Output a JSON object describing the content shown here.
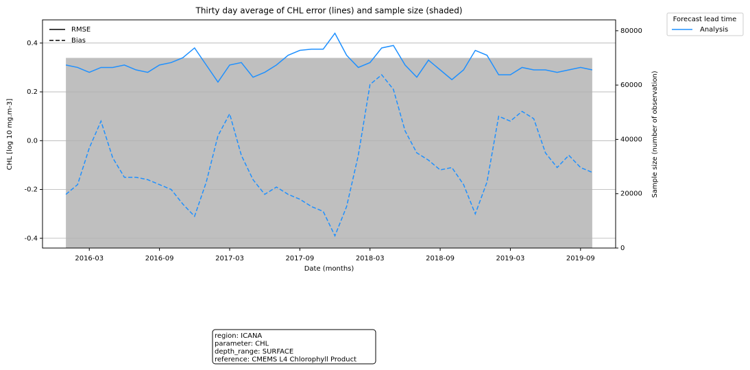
{
  "chart_data": {
    "type": "line",
    "title": "Thirty day average of CHL error (lines) and sample size (shaded)",
    "x_label": "Date (months)",
    "y_label": "CHL [log 10 mg.m-3]",
    "y2_label": "Sample size (number of observation)",
    "x": [
      "2016-01",
      "2016-02",
      "2016-03",
      "2016-04",
      "2016-05",
      "2016-06",
      "2016-07",
      "2016-08",
      "2016-09",
      "2016-10",
      "2016-11",
      "2016-12",
      "2017-01",
      "2017-02",
      "2017-03",
      "2017-04",
      "2017-05",
      "2017-06",
      "2017-07",
      "2017-08",
      "2017-09",
      "2017-10",
      "2017-11",
      "2017-12",
      "2018-01",
      "2018-02",
      "2018-03",
      "2018-04",
      "2018-05",
      "2018-06",
      "2018-07",
      "2018-08",
      "2018-09",
      "2018-10",
      "2018-11",
      "2018-12",
      "2019-01",
      "2019-02",
      "2019-03",
      "2019-04",
      "2019-05",
      "2019-06",
      "2019-07",
      "2019-08",
      "2019-09",
      "2019-10"
    ],
    "xlim": [
      "2015-11",
      "2019-12"
    ],
    "xticks": [
      "2016-03",
      "2016-09",
      "2017-03",
      "2017-09",
      "2018-03",
      "2018-09",
      "2019-03",
      "2019-09"
    ],
    "ylim": [
      -0.44,
      0.495
    ],
    "yticks": [
      -0.4,
      -0.2,
      {
        "value": 0,
        "label": "0.0"
      },
      0.2,
      0.4
    ],
    "y2lim": [
      0,
      84000
    ],
    "y2ticks": [
      0,
      20000,
      40000,
      60000,
      80000
    ],
    "grid": true,
    "styles": [
      {
        "name": "RMSE",
        "dash": "none"
      },
      {
        "name": "Bias",
        "dash": "6,3"
      }
    ],
    "legend_title": "Forecast lead time",
    "series": [
      {
        "name": "Analysis",
        "color": "#1e90ff",
        "values": [
          [
            0.31,
            0.3,
            0.28,
            0.3,
            0.3,
            0.31,
            0.29,
            0.28,
            0.31,
            0.32,
            0.34,
            0.38,
            0.31,
            0.24,
            0.31,
            0.32,
            0.26,
            0.28,
            0.31,
            0.35,
            0.37,
            0.375,
            0.375,
            0.44,
            0.35,
            0.3,
            0.32,
            0.38,
            0.39,
            0.31,
            0.26,
            0.33,
            0.29,
            0.25,
            0.29,
            0.37,
            0.35,
            0.27,
            0.27,
            0.3,
            0.29,
            0.29,
            0.28,
            0.29,
            0.3,
            0.29
          ],
          [
            -0.22,
            -0.18,
            -0.03,
            0.08,
            -0.07,
            -0.15,
            -0.15,
            -0.16,
            -0.18,
            -0.2,
            -0.26,
            -0.31,
            -0.17,
            0.02,
            0.11,
            -0.06,
            -0.16,
            -0.22,
            -0.19,
            -0.22,
            -0.24,
            -0.27,
            -0.29,
            -0.39,
            -0.27,
            -0.06,
            0.23,
            0.27,
            0.21,
            0.04,
            -0.05,
            -0.08,
            -0.12,
            -0.11,
            -0.18,
            -0.3,
            -0.17,
            0.1,
            0.08,
            0.12,
            0.09,
            -0.05,
            -0.11,
            -0.06,
            -0.11,
            -0.13
          ]
        ]
      }
    ],
    "sample_size": {
      "color": "#bfbfbf",
      "axis": "y2",
      "values": [
        70000,
        70000,
        70000,
        70000,
        70000,
        70000,
        70000,
        70000,
        70000,
        70000,
        70000,
        70000,
        70000,
        70000,
        70000,
        70000,
        70000,
        70000,
        70000,
        70000,
        70000,
        70000,
        70000,
        70000,
        70000,
        70000,
        70000,
        70000,
        70000,
        70000,
        70000,
        70000,
        70000,
        70000,
        70000,
        70000,
        70000,
        70000,
        70000,
        70000,
        70000,
        70000,
        70000,
        70000,
        70000,
        70000
      ]
    },
    "annotation": [
      "region: ICANA",
      "parameter: CHL",
      "depth_range: SURFACE",
      "reference: CMEMS L4 Chlorophyll Product"
    ]
  }
}
